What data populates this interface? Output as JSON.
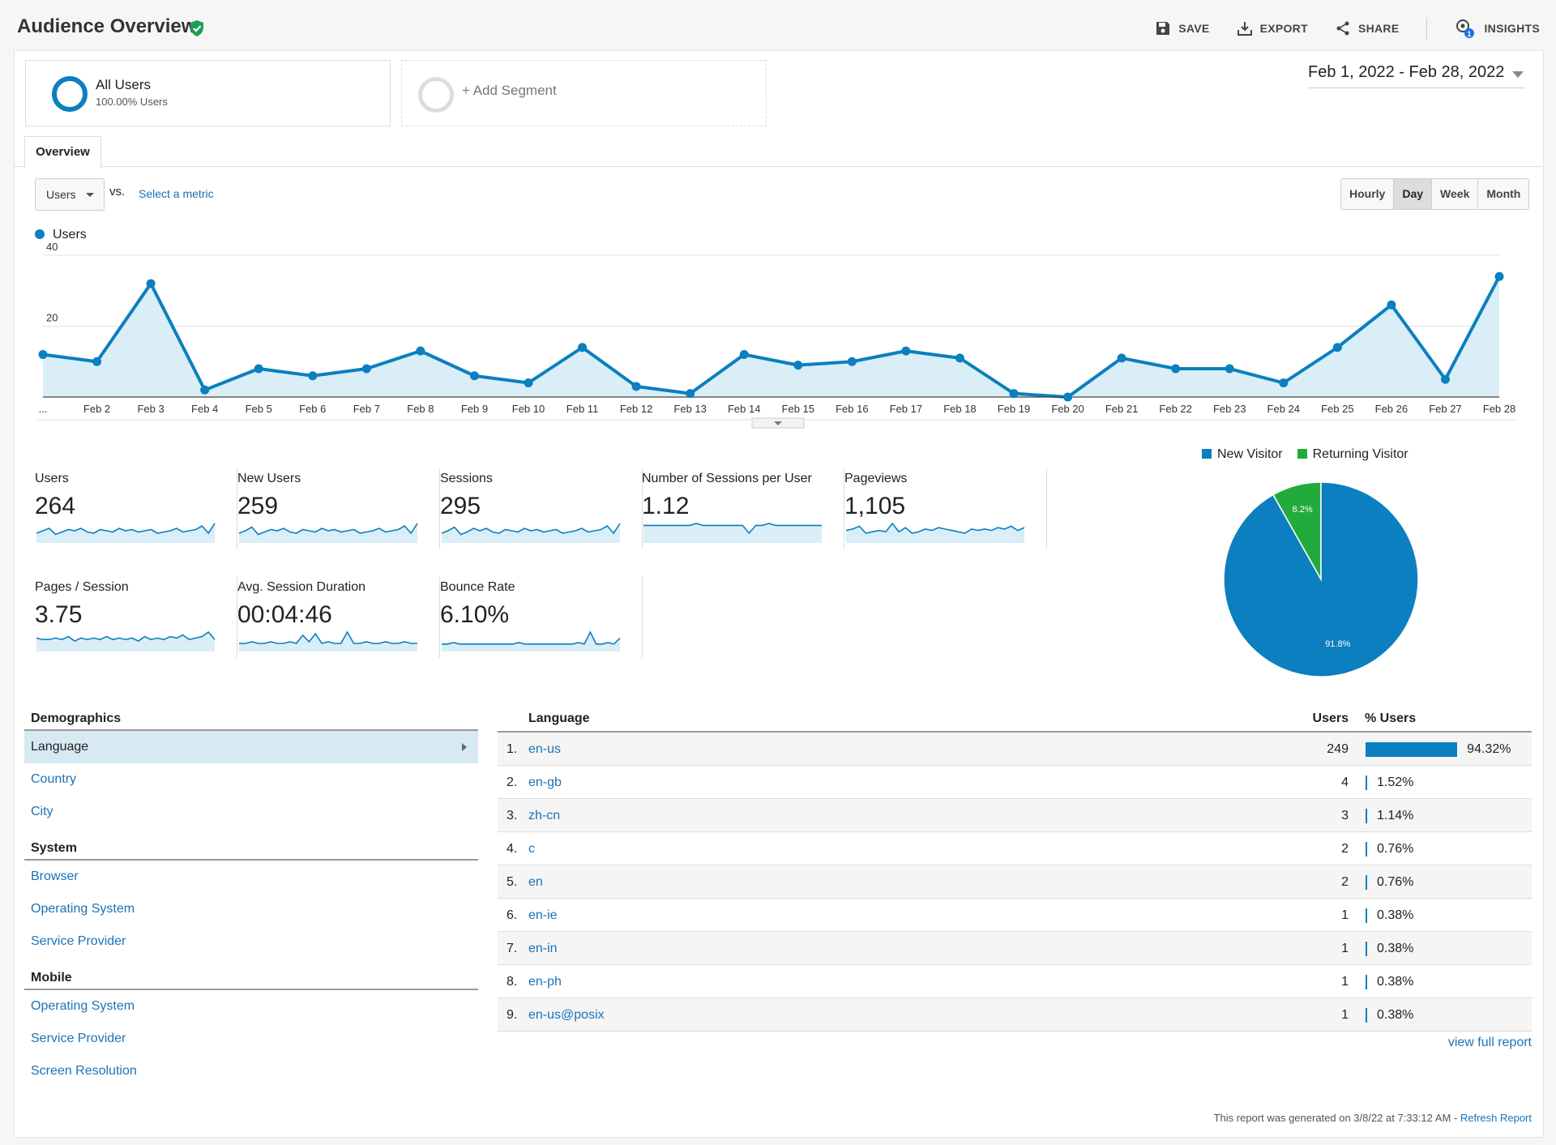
{
  "header": {
    "title": "Audience Overview",
    "toolbar": {
      "save": "SAVE",
      "export": "EXPORT",
      "share": "SHARE",
      "insights": "INSIGHTS",
      "insights_badge": "1"
    }
  },
  "segments": {
    "all_users": {
      "name": "All Users",
      "sub": "100.00% Users"
    },
    "add_segment": "+ Add Segment"
  },
  "date_range": "Feb 1, 2022 - Feb 28, 2022",
  "tabs": {
    "overview": "Overview"
  },
  "controls": {
    "metric": "Users",
    "vs": "vs.",
    "select_metric": "Select a metric",
    "periods": [
      "Hourly",
      "Day",
      "Week",
      "Month"
    ],
    "active_period": "Day"
  },
  "chart_data": [
    {
      "type": "area",
      "legend": "Users",
      "yticks": [
        20,
        40
      ],
      "ylim": [
        0,
        40
      ],
      "xtick_labels": [
        "...",
        "Feb 2",
        "Feb 3",
        "Feb 4",
        "Feb 5",
        "Feb 6",
        "Feb 7",
        "Feb 8",
        "Feb 9",
        "Feb 10",
        "Feb 11",
        "Feb 12",
        "Feb 13",
        "Feb 14",
        "Feb 15",
        "Feb 16",
        "Feb 17",
        "Feb 18",
        "Feb 19",
        "Feb 20",
        "Feb 21",
        "Feb 22",
        "Feb 23",
        "Feb 24",
        "Feb 25",
        "Feb 26",
        "Feb 27",
        "Feb 28"
      ],
      "x": [
        "Feb 1",
        "Feb 2",
        "Feb 3",
        "Feb 4",
        "Feb 5",
        "Feb 6",
        "Feb 7",
        "Feb 8",
        "Feb 9",
        "Feb 10",
        "Feb 11",
        "Feb 12",
        "Feb 13",
        "Feb 14",
        "Feb 15",
        "Feb 16",
        "Feb 17",
        "Feb 18",
        "Feb 19",
        "Feb 20",
        "Feb 21",
        "Feb 22",
        "Feb 23",
        "Feb 24",
        "Feb 25",
        "Feb 26",
        "Feb 27",
        "Feb 28"
      ],
      "values": [
        12,
        10,
        32,
        2,
        8,
        6,
        8,
        13,
        6,
        4,
        14,
        3,
        1,
        12,
        9,
        10,
        13,
        11,
        1,
        0,
        11,
        8,
        8,
        4,
        14,
        26,
        5,
        34
      ],
      "grid": true
    },
    {
      "type": "pie",
      "legend_position": "top",
      "series": [
        {
          "name": "New Visitor",
          "value": 91.8,
          "label": "91.8%",
          "color": "#0b7fbf"
        },
        {
          "name": "Returning Visitor",
          "value": 8.2,
          "label": "8.2%",
          "color": "#22ab3d"
        }
      ]
    }
  ],
  "metric_cards": [
    {
      "title": "Users",
      "value": "264",
      "spark": [
        8,
        10,
        12,
        7,
        9,
        11,
        10,
        12,
        9,
        8,
        11,
        10,
        9,
        12,
        10,
        11,
        9,
        10,
        11,
        8,
        9,
        10,
        12,
        9,
        10,
        11,
        14,
        8,
        16
      ]
    },
    {
      "title": "New Users",
      "value": "259",
      "spark": [
        8,
        10,
        13,
        7,
        9,
        11,
        10,
        12,
        9,
        8,
        11,
        10,
        9,
        12,
        10,
        11,
        9,
        10,
        11,
        8,
        9,
        10,
        12,
        9,
        10,
        11,
        14,
        8,
        16
      ]
    },
    {
      "title": "Sessions",
      "value": "295",
      "spark": [
        8,
        10,
        13,
        7,
        9,
        12,
        10,
        12,
        9,
        8,
        11,
        10,
        9,
        12,
        10,
        11,
        9,
        10,
        11,
        8,
        9,
        10,
        12,
        9,
        10,
        11,
        14,
        8,
        16
      ]
    },
    {
      "title": "Number of Sessions per User",
      "value": "1.12",
      "spark": [
        9,
        9,
        9,
        9,
        9,
        9,
        9,
        9,
        10,
        9,
        9,
        9,
        9,
        9,
        9,
        9,
        5,
        9,
        9,
        10,
        9,
        9,
        9,
        9,
        9,
        9,
        9,
        9
      ]
    },
    {
      "title": "Pageviews",
      "value": "1,105",
      "spark": [
        9,
        10,
        12,
        7,
        8,
        9,
        8,
        14,
        8,
        11,
        7,
        8,
        10,
        9,
        11,
        10,
        9,
        8,
        7,
        10,
        9,
        10,
        9,
        11,
        10,
        12,
        9,
        11
      ]
    },
    {
      "title": "Pages / Session",
      "value": "3.75",
      "spark": [
        9,
        8,
        8,
        9,
        8,
        10,
        7,
        9,
        8,
        9,
        8,
        10,
        8,
        9,
        8,
        9,
        7,
        10,
        8,
        9,
        8,
        10,
        9,
        11,
        8,
        9,
        10,
        13,
        8
      ]
    },
    {
      "title": "Avg. Session Duration",
      "value": "00:04:46",
      "spark": [
        5,
        5,
        6,
        5,
        5,
        6,
        5,
        5,
        6,
        5,
        10,
        6,
        11,
        5,
        6,
        5,
        5,
        12,
        5,
        5,
        6,
        5,
        5,
        6,
        5,
        5,
        6,
        5,
        5
      ]
    },
    {
      "title": "Bounce Rate",
      "value": "6.10%",
      "spark": [
        5,
        5,
        6,
        5,
        5,
        5,
        5,
        5,
        5,
        5,
        5,
        5,
        5,
        6,
        5,
        5,
        5,
        5,
        5,
        5,
        5,
        5,
        5,
        6,
        5,
        13,
        5,
        5,
        6,
        5,
        9
      ]
    }
  ],
  "demographics": {
    "sections": [
      {
        "heading": "Demographics",
        "items": [
          "Language",
          "Country",
          "City"
        ]
      },
      {
        "heading": "System",
        "items": [
          "Browser",
          "Operating System",
          "Service Provider"
        ]
      },
      {
        "heading": "Mobile",
        "items": [
          "Operating System",
          "Service Provider",
          "Screen Resolution"
        ]
      }
    ],
    "active": "Language"
  },
  "language_table": {
    "headers": {
      "language": "Language",
      "users": "Users",
      "pct_users": "% Users"
    },
    "rows": [
      {
        "num": "1.",
        "lang": "en-us",
        "users": "249",
        "pct": "94.32%",
        "share": 94.32
      },
      {
        "num": "2.",
        "lang": "en-gb",
        "users": "4",
        "pct": "1.52%",
        "share": 1.52
      },
      {
        "num": "3.",
        "lang": "zh-cn",
        "users": "3",
        "pct": "1.14%",
        "share": 1.14
      },
      {
        "num": "4.",
        "lang": "c",
        "users": "2",
        "pct": "0.76%",
        "share": 0.76
      },
      {
        "num": "5.",
        "lang": "en",
        "users": "2",
        "pct": "0.76%",
        "share": 0.76
      },
      {
        "num": "6.",
        "lang": "en-ie",
        "users": "1",
        "pct": "0.38%",
        "share": 0.38
      },
      {
        "num": "7.",
        "lang": "en-in",
        "users": "1",
        "pct": "0.38%",
        "share": 0.38
      },
      {
        "num": "8.",
        "lang": "en-ph",
        "users": "1",
        "pct": "0.38%",
        "share": 0.38
      },
      {
        "num": "9.",
        "lang": "en-us@posix",
        "users": "1",
        "pct": "0.38%",
        "share": 0.38
      }
    ],
    "view_full_report": "view full report"
  },
  "footer": {
    "text": "This report was generated on 3/8/22 at 7:33:12 AM - ",
    "refresh": "Refresh Report"
  }
}
